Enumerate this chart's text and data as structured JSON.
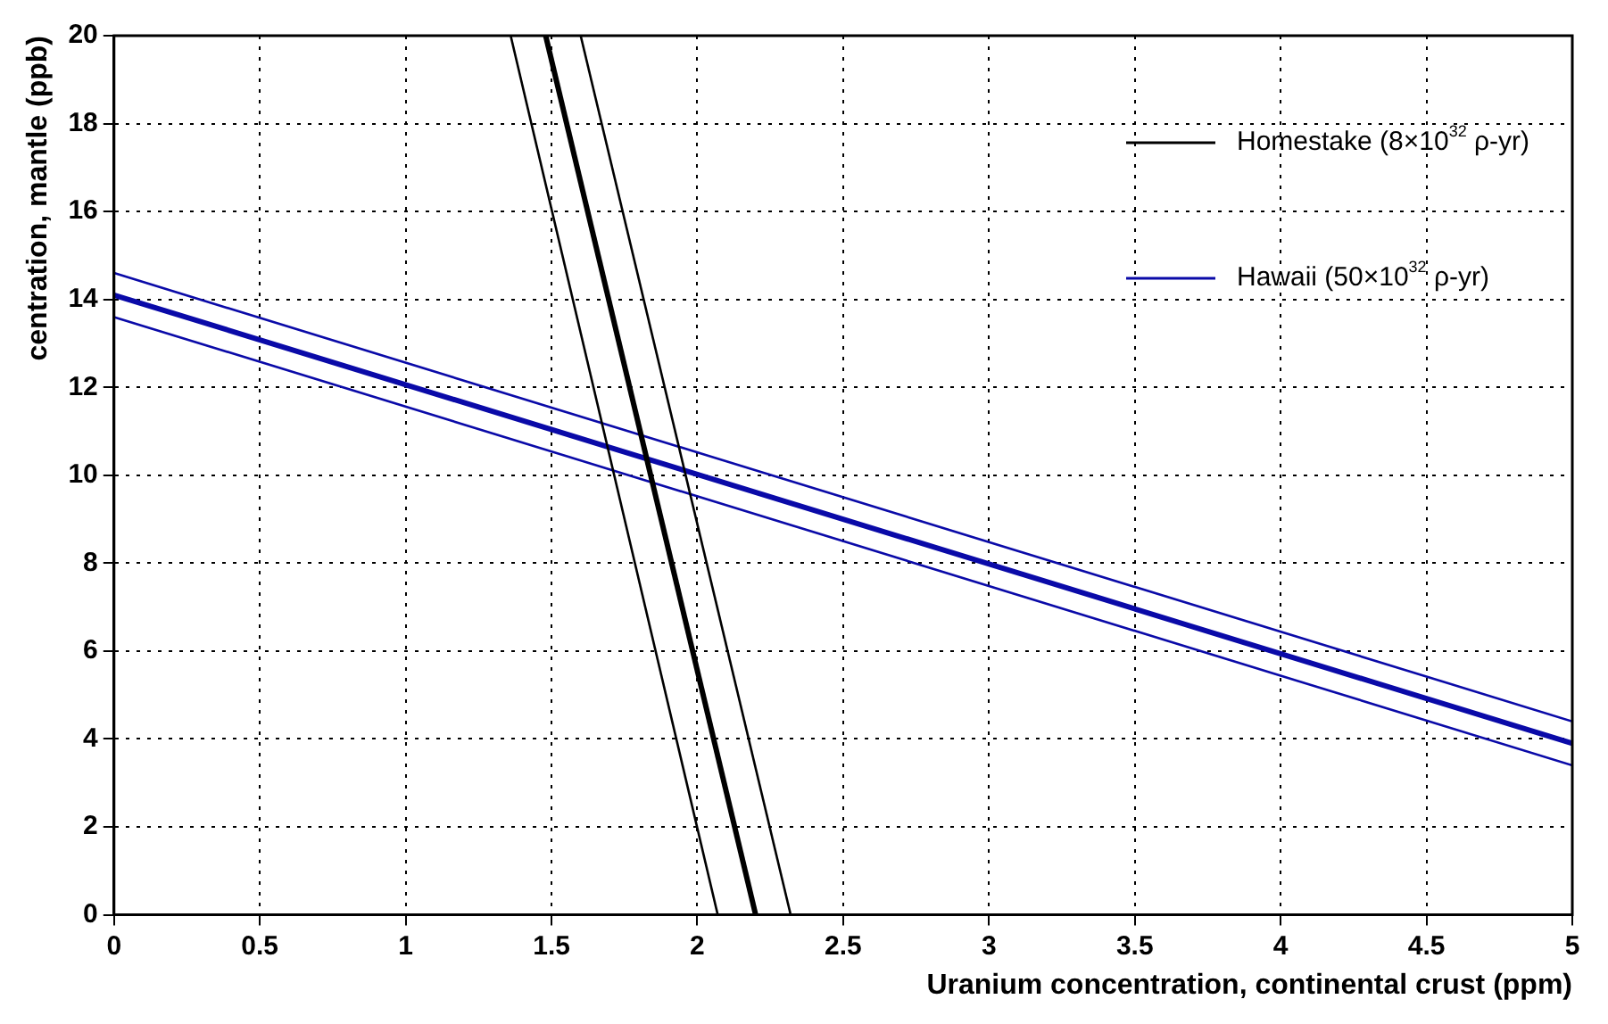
{
  "chart_data": {
    "type": "line",
    "xlabel": "Uranium concentration, continental crust (ppm)",
    "ylabel": "centration, mantle (ppb)",
    "xlim": [
      0,
      5
    ],
    "ylim": [
      0,
      20
    ],
    "xticks": [
      0,
      0.5,
      1,
      1.5,
      2,
      2.5,
      3,
      3.5,
      4,
      4.5,
      5
    ],
    "yticks": [
      0,
      2,
      4,
      6,
      8,
      10,
      12,
      14,
      16,
      18,
      20
    ],
    "grid": true,
    "legend": "top right",
    "series": [
      {
        "name": "Homestake (8×10$^{32}$ ρ-yr)",
        "color": "#000000",
        "x": [
          1.48,
          2.2
        ],
        "values": [
          20,
          0
        ]
      },
      {
        "color": "#000000",
        "x": [
          1.36,
          2.07
        ],
        "values": [
          20,
          0
        ]
      },
      {
        "color": "#000000",
        "x": [
          1.6,
          2.32
        ],
        "values": [
          20,
          0
        ]
      },
      {
        "name": "Hawaii (50×10$^{32}$ ρ-yr)",
        "color": "#0a0aa8",
        "x": [
          0,
          5
        ],
        "values": [
          14.1,
          3.9
        ]
      },
      {
        "color": "#0a0aa8",
        "x": [
          0,
          5
        ],
        "values": [
          14.6,
          4.4
        ]
      },
      {
        "color": "#0a0aa8",
        "x": [
          0,
          5
        ],
        "values": [
          13.6,
          3.4
        ]
      }
    ]
  }
}
